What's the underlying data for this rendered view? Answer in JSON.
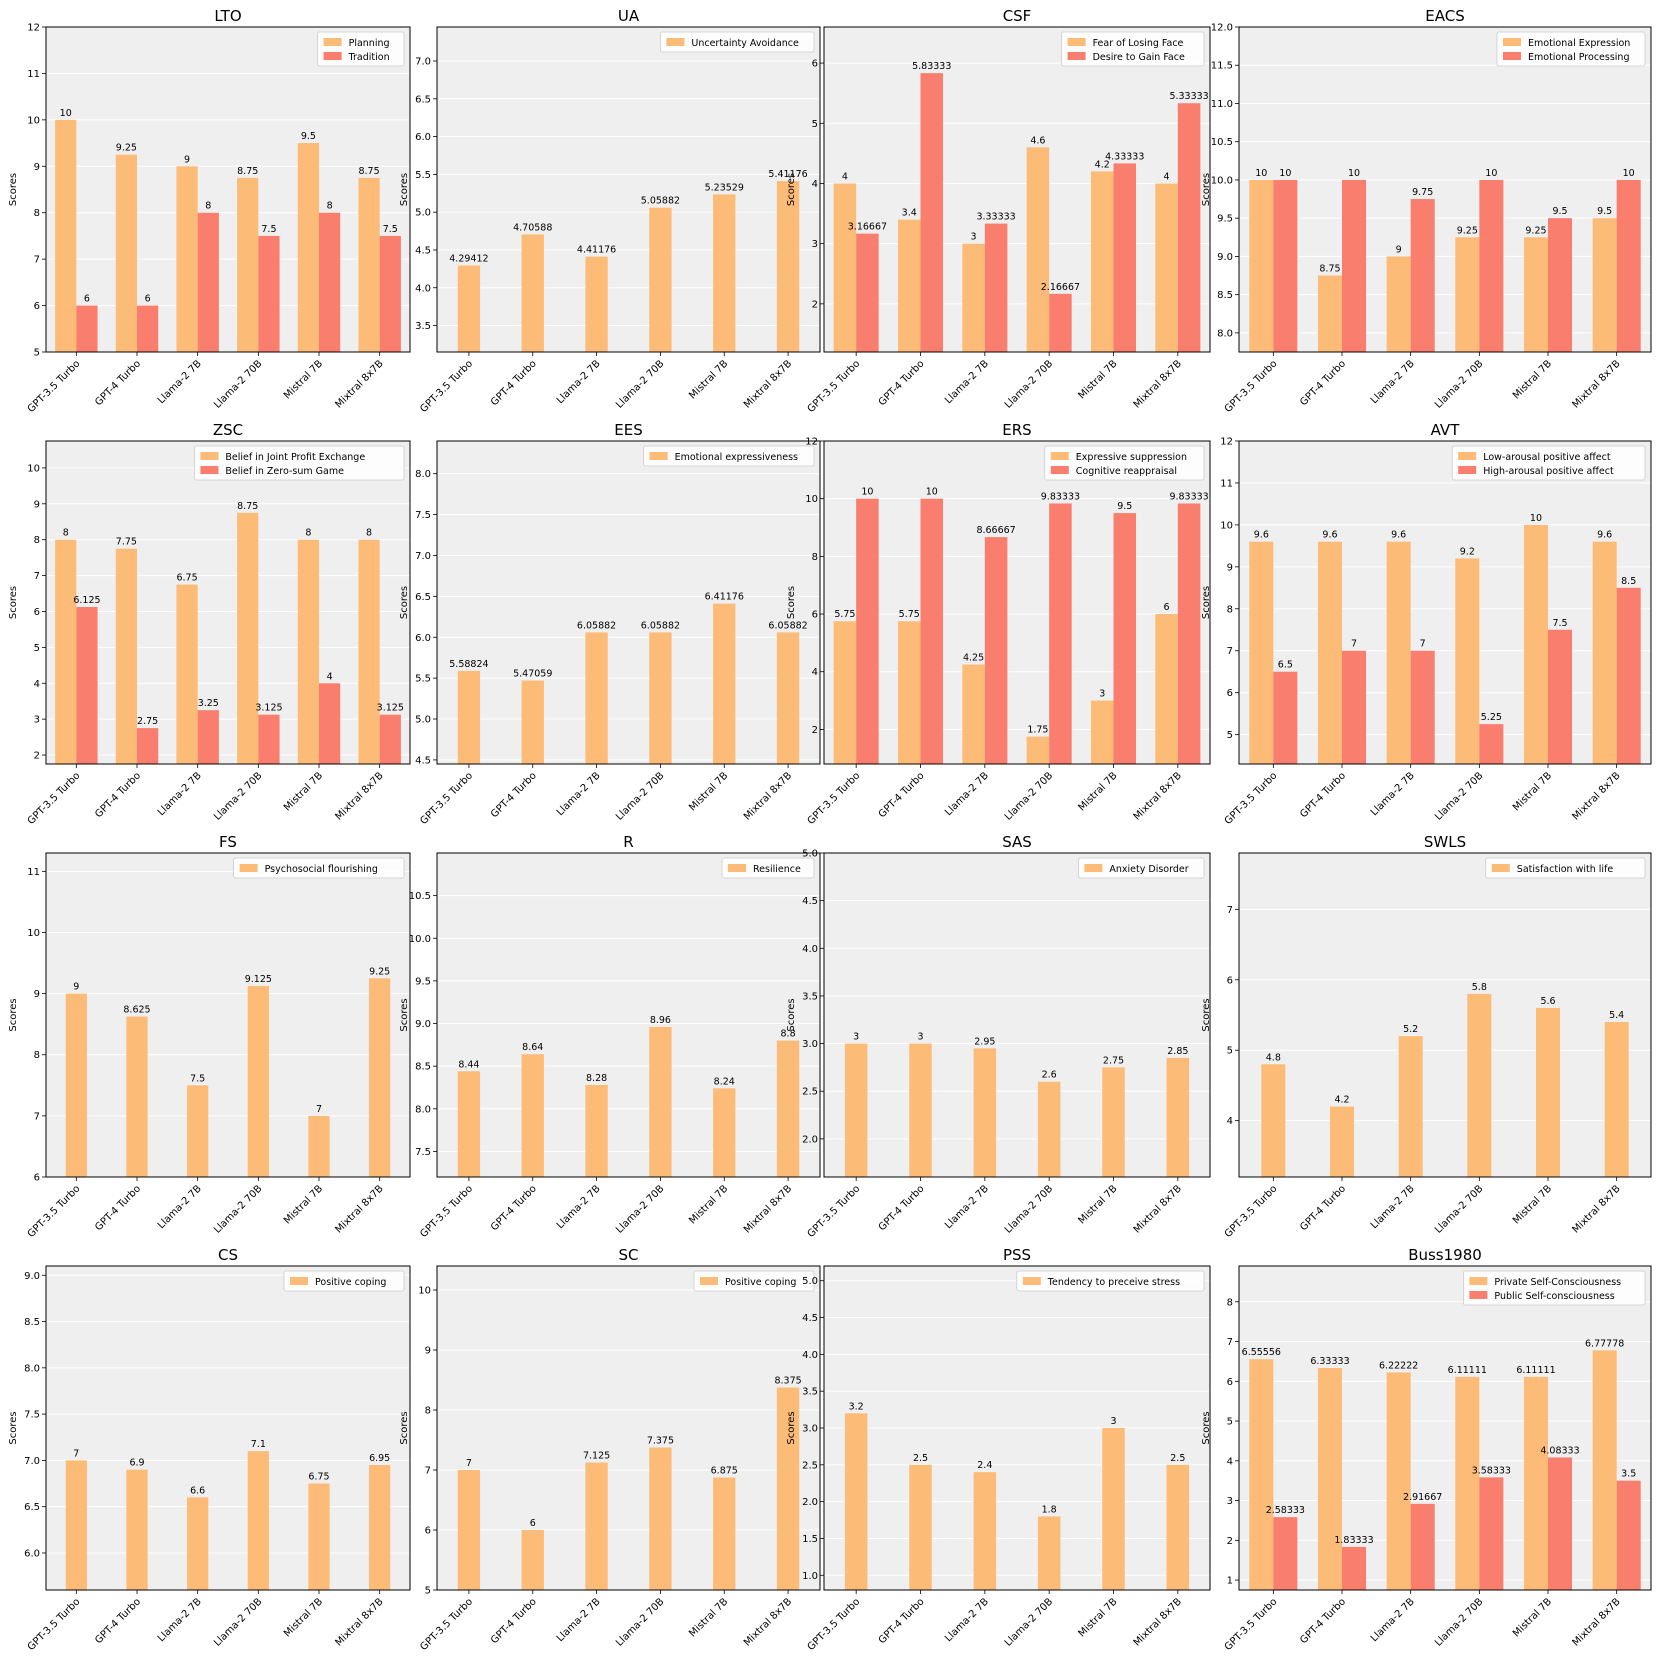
{
  "chart_data": [
    {
      "type": "bar",
      "title": "LTO",
      "ylabel": "Scores",
      "ylim": [
        5,
        12
      ],
      "yticks": [
        5,
        6,
        7,
        8,
        9,
        10,
        11,
        12
      ],
      "tick_decimals": 0,
      "legend": "top-right",
      "categories": [
        "GPT-3.5 Turbo",
        "GPT-4 Turbo",
        "Llama-2 7B",
        "Llama-2 70B",
        "Mistral 7B",
        "Mixtral 8x7B"
      ],
      "series": [
        {
          "name": "Planning",
          "values": [
            10,
            9.25,
            9,
            8.75,
            9.5,
            8.75
          ],
          "labels": [
            "10",
            "9.25",
            "9",
            "8.75",
            "9.5",
            "8.75"
          ]
        },
        {
          "name": "Tradition",
          "values": [
            6,
            6,
            8,
            7.5,
            8,
            7.5
          ],
          "labels": [
            "6",
            "6",
            "8",
            "7.5",
            "8",
            "7.5"
          ]
        }
      ]
    },
    {
      "type": "bar",
      "title": "UA",
      "ylabel": "Scores",
      "ylim": [
        3.15,
        7.45
      ],
      "yticks": [
        3.5,
        4.0,
        4.5,
        5.0,
        5.5,
        6.0,
        6.5,
        7.0
      ],
      "tick_decimals": 1,
      "legend": "top-right",
      "categories": [
        "GPT-3.5 Turbo",
        "GPT-4 Turbo",
        "Llama-2 7B",
        "Llama-2 70B",
        "Mistral 7B",
        "Mixtral 8x7B"
      ],
      "series": [
        {
          "name": "Uncertainty Avoidance",
          "values": [
            4.29412,
            4.70588,
            4.41176,
            5.05882,
            5.23529,
            5.41176
          ],
          "labels": [
            "4.29412",
            "4.70588",
            "4.41176",
            "5.05882",
            "5.23529",
            "5.41176"
          ]
        }
      ]
    },
    {
      "type": "bar",
      "title": "CSF",
      "ylabel": "Scores",
      "ylim": [
        1.2,
        6.6
      ],
      "yticks": [
        2,
        3,
        4,
        5,
        6
      ],
      "tick_decimals": 0,
      "legend": "top-right",
      "categories": [
        "GPT-3.5 Turbo",
        "GPT-4 Turbo",
        "Llama-2 7B",
        "Llama-2 70B",
        "Mistral 7B",
        "Mixtral 8x7B"
      ],
      "series": [
        {
          "name": "Fear of Losing Face",
          "values": [
            4,
            3.4,
            3,
            4.6,
            4.2,
            4
          ],
          "labels": [
            "4",
            "3.4",
            "3",
            "4.6",
            "4.2",
            "4"
          ]
        },
        {
          "name": "Desire to Gain Face",
          "values": [
            3.16667,
            5.83333,
            3.33333,
            2.16667,
            4.33333,
            5.33333
          ],
          "labels": [
            "3.16667",
            "5.83333",
            "3.33333",
            "2.16667",
            "4.33333",
            "5.33333"
          ]
        }
      ]
    },
    {
      "type": "bar",
      "title": "EACS",
      "ylabel": "Scores",
      "ylim": [
        7.75,
        12
      ],
      "yticks": [
        8.0,
        8.5,
        9.0,
        9.5,
        10.0,
        10.5,
        11.0,
        11.5,
        12.0
      ],
      "tick_decimals": 1,
      "legend": "top-right",
      "categories": [
        "GPT-3.5 Turbo",
        "GPT-4 Turbo",
        "Llama-2 7B",
        "Llama-2 70B",
        "Mistral 7B",
        "Mixtral 8x7B"
      ],
      "series": [
        {
          "name": "Emotional Expression",
          "values": [
            10,
            8.75,
            9,
            9.25,
            9.25,
            9.5
          ],
          "labels": [
            "10",
            "8.75",
            "9",
            "9.25",
            "9.25",
            "9.5"
          ]
        },
        {
          "name": "Emotional Processing",
          "values": [
            10,
            10,
            9.75,
            10,
            9.5,
            10
          ],
          "labels": [
            "10",
            "10",
            "9.75",
            "10",
            "9.5",
            "10"
          ]
        }
      ]
    },
    {
      "type": "bar",
      "title": "ZSC",
      "ylabel": "Scores",
      "ylim": [
        1.75,
        10.75
      ],
      "yticks": [
        2,
        3,
        4,
        5,
        6,
        7,
        8,
        9,
        10
      ],
      "tick_decimals": 0,
      "legend": "top-right",
      "categories": [
        "GPT-3.5 Turbo",
        "GPT-4 Turbo",
        "Llama-2 7B",
        "Llama-2 70B",
        "Mistral 7B",
        "Mixtral 8x7B"
      ],
      "series": [
        {
          "name": "Belief in Joint Profit Exchange",
          "values": [
            8,
            7.75,
            6.75,
            8.75,
            8,
            8
          ],
          "labels": [
            "8",
            "7.75",
            "6.75",
            "8.75",
            "8",
            "8"
          ]
        },
        {
          "name": "Belief in Zero-sum Game",
          "values": [
            6.125,
            2.75,
            3.25,
            3.125,
            4,
            3.125
          ],
          "labels": [
            "6.125",
            "2.75",
            "3.25",
            "3.125",
            "4",
            "3.125"
          ]
        }
      ]
    },
    {
      "type": "bar",
      "title": "EES",
      "ylabel": "Scores",
      "ylim": [
        4.45,
        8.4
      ],
      "yticks": [
        4.5,
        5.0,
        5.5,
        6.0,
        6.5,
        7.0,
        7.5,
        8.0
      ],
      "tick_decimals": 1,
      "legend": "top-right",
      "categories": [
        "GPT-3.5 Turbo",
        "GPT-4 Turbo",
        "Llama-2 7B",
        "Llama-2 70B",
        "Mistral 7B",
        "Mixtral 8x7B"
      ],
      "series": [
        {
          "name": "Emotional expressiveness",
          "values": [
            5.58824,
            5.47059,
            6.05882,
            6.05882,
            6.41176,
            6.05882
          ],
          "labels": [
            "5.58824",
            "5.47059",
            "6.05882",
            "6.05882",
            "6.41176",
            "6.05882"
          ]
        }
      ]
    },
    {
      "type": "bar",
      "title": "ERS",
      "ylabel": "Scores",
      "ylim": [
        0.8,
        12
      ],
      "yticks": [
        2,
        4,
        6,
        8,
        10,
        12
      ],
      "tick_decimals": 0,
      "legend": "top-right",
      "categories": [
        "GPT-3.5 Turbo",
        "GPT-4 Turbo",
        "Llama-2 7B",
        "Llama-2 70B",
        "Mistral 7B",
        "Mixtral 8x7B"
      ],
      "series": [
        {
          "name": "Expressive suppression",
          "values": [
            5.75,
            5.75,
            4.25,
            1.75,
            3,
            6
          ],
          "labels": [
            "5.75",
            "5.75",
            "4.25",
            "1.75",
            "3",
            "6"
          ]
        },
        {
          "name": "Cognitive reappraisal",
          "values": [
            10,
            10,
            8.66667,
            9.83333,
            9.5,
            9.83333
          ],
          "labels": [
            "10",
            "10",
            "8.66667",
            "9.83333",
            "9.5",
            "9.83333"
          ]
        }
      ]
    },
    {
      "type": "bar",
      "title": "AVT",
      "ylabel": "Scores",
      "ylim": [
        4.3,
        12
      ],
      "yticks": [
        5,
        6,
        7,
        8,
        9,
        10,
        11,
        12
      ],
      "tick_decimals": 0,
      "legend": "top-right",
      "categories": [
        "GPT-3.5 Turbo",
        "GPT-4 Turbo",
        "Llama-2 7B",
        "Llama-2 70B",
        "Mistral 7B",
        "Mixtral 8x7B"
      ],
      "series": [
        {
          "name": "Low-arousal positive affect",
          "values": [
            9.6,
            9.6,
            9.6,
            9.2,
            10,
            9.6
          ],
          "labels": [
            "9.6",
            "9.6",
            "9.6",
            "9.2",
            "10",
            "9.6"
          ]
        },
        {
          "name": "High-arousal positive affect",
          "values": [
            6.5,
            7,
            7,
            5.25,
            7.5,
            8.5
          ],
          "labels": [
            "6.5",
            "7",
            "7",
            "5.25",
            "7.5",
            "8.5"
          ]
        }
      ]
    },
    {
      "type": "bar",
      "title": "FS",
      "ylabel": "Scores",
      "ylim": [
        6,
        11.3
      ],
      "yticks": [
        6,
        7,
        8,
        9,
        10,
        11
      ],
      "tick_decimals": 0,
      "legend": "top-right",
      "categories": [
        "GPT-3.5 Turbo",
        "GPT-4 Turbo",
        "Llama-2 7B",
        "Llama-2 70B",
        "Mistral 7B",
        "Mixtral 8x7B"
      ],
      "series": [
        {
          "name": "Psychosocial flourishing",
          "values": [
            9,
            8.625,
            7.5,
            9.125,
            7,
            9.25
          ],
          "labels": [
            "9",
            "8.625",
            "7.5",
            "9.125",
            "7",
            "9.25"
          ]
        }
      ]
    },
    {
      "type": "bar",
      "title": "R",
      "ylabel": "Scores",
      "ylim": [
        7.2,
        11
      ],
      "yticks": [
        7.5,
        8.0,
        8.5,
        9.0,
        9.5,
        10.0,
        10.5
      ],
      "tick_decimals": 1,
      "legend": "top-right",
      "categories": [
        "GPT-3.5 Turbo",
        "GPT-4 Turbo",
        "Llama-2 7B",
        "Llama-2 70B",
        "Mistral 7B",
        "Mixtral 8x7B"
      ],
      "series": [
        {
          "name": "Resilience",
          "values": [
            8.44,
            8.64,
            8.28,
            8.96,
            8.24,
            8.8
          ],
          "labels": [
            "8.44",
            "8.64",
            "8.28",
            "8.96",
            "8.24",
            "8.8"
          ]
        }
      ]
    },
    {
      "type": "bar",
      "title": "SAS",
      "ylabel": "Scores",
      "ylim": [
        1.6,
        5
      ],
      "yticks": [
        2.0,
        2.5,
        3.0,
        3.5,
        4.0,
        4.5,
        5.0
      ],
      "tick_decimals": 1,
      "legend": "top-right",
      "categories": [
        "GPT-3.5 Turbo",
        "GPT-4 Turbo",
        "Llama-2 7B",
        "Llama-2 70B",
        "Mistral 7B",
        "Mixtral 8x7B"
      ],
      "series": [
        {
          "name": "Anxiety Disorder",
          "values": [
            3,
            3,
            2.95,
            2.6,
            2.75,
            2.85
          ],
          "labels": [
            "3",
            "3",
            "2.95",
            "2.6",
            "2.75",
            "2.85"
          ]
        }
      ]
    },
    {
      "type": "bar",
      "title": "SWLS",
      "ylabel": "Scores",
      "ylim": [
        3.2,
        7.8
      ],
      "yticks": [
        4,
        5,
        6,
        7
      ],
      "tick_decimals": 0,
      "legend": "top-right",
      "categories": [
        "GPT-3.5 Turbo",
        "GPT-4 Turbo",
        "Llama-2 7B",
        "Llama-2 70B",
        "Mistral 7B",
        "Mixtral 8x7B"
      ],
      "series": [
        {
          "name": "Satisfaction with life",
          "values": [
            4.8,
            4.2,
            5.2,
            5.8,
            5.6,
            5.4
          ],
          "labels": [
            "4.8",
            "4.2",
            "5.2",
            "5.8",
            "5.6",
            "5.4"
          ]
        }
      ]
    },
    {
      "type": "bar",
      "title": "CS",
      "ylabel": "Scores",
      "ylim": [
        5.6,
        9.1
      ],
      "yticks": [
        6.0,
        6.5,
        7.0,
        7.5,
        8.0,
        8.5,
        9.0
      ],
      "tick_decimals": 1,
      "legend": "top-right",
      "categories": [
        "GPT-3.5 Turbo",
        "GPT-4 Turbo",
        "Llama-2 7B",
        "Llama-2 70B",
        "Mistral 7B",
        "Mixtral 8x7B"
      ],
      "series": [
        {
          "name": "Positive coping",
          "values": [
            7,
            6.9,
            6.6,
            7.1,
            6.75,
            6.95
          ],
          "labels": [
            "7",
            "6.9",
            "6.6",
            "7.1",
            "6.75",
            "6.95"
          ]
        }
      ]
    },
    {
      "type": "bar",
      "title": "SC",
      "ylabel": "Scores",
      "ylim": [
        5,
        10.4
      ],
      "yticks": [
        5,
        6,
        7,
        8,
        9,
        10
      ],
      "tick_decimals": 0,
      "legend": "top-right",
      "categories": [
        "GPT-3.5 Turbo",
        "GPT-4 Turbo",
        "Llama-2 7B",
        "Llama-2 70B",
        "Mistral 7B",
        "Mixtral 8x7B"
      ],
      "series": [
        {
          "name": "Positive coping",
          "values": [
            7,
            6,
            7.125,
            7.375,
            6.875,
            8.375
          ],
          "labels": [
            "7",
            "6",
            "7.125",
            "7.375",
            "6.875",
            "8.375"
          ]
        }
      ]
    },
    {
      "type": "bar",
      "title": "PSS",
      "ylabel": "Scores",
      "ylim": [
        0.8,
        5.2
      ],
      "yticks": [
        1.0,
        1.5,
        2.0,
        2.5,
        3.0,
        3.5,
        4.0,
        4.5,
        5.0
      ],
      "tick_decimals": 1,
      "legend": "top-right",
      "categories": [
        "GPT-3.5 Turbo",
        "GPT-4 Turbo",
        "Llama-2 7B",
        "Llama-2 70B",
        "Mistral 7B",
        "Mixtral 8x7B"
      ],
      "series": [
        {
          "name": "Tendency to preceive stress",
          "values": [
            3.2,
            2.5,
            2.4,
            1.8,
            3,
            2.5
          ],
          "labels": [
            "3.2",
            "2.5",
            "2.4",
            "1.8",
            "3",
            "2.5"
          ]
        }
      ]
    },
    {
      "type": "bar",
      "title": "Buss1980",
      "ylabel": "Scores",
      "ylim": [
        0.75,
        8.9
      ],
      "yticks": [
        1,
        2,
        3,
        4,
        5,
        6,
        7,
        8
      ],
      "tick_decimals": 0,
      "legend": "top-right",
      "categories": [
        "GPT-3.5 Turbo",
        "GPT-4 Turbo",
        "Llama-2 7B",
        "Llama-2 70B",
        "Mistral 7B",
        "Mixtral 8x7B"
      ],
      "series": [
        {
          "name": "Private Self-Consciousness",
          "values": [
            6.55556,
            6.33333,
            6.22222,
            6.11111,
            6.11111,
            6.77778
          ],
          "labels": [
            "6.55556",
            "6.33333",
            "6.22222",
            "6.11111",
            "6.11111",
            "6.77778"
          ]
        },
        {
          "name": "Public Self-consciousness",
          "values": [
            2.58333,
            1.83333,
            2.91667,
            3.58333,
            4.08333,
            3.5
          ],
          "labels": [
            "2.58333",
            "1.83333",
            "2.91667",
            "3.58333",
            "4.08333",
            "3.5"
          ]
        }
      ]
    }
  ],
  "colors": {
    "series": [
      "#FDBB78",
      "#FA7E6D"
    ],
    "plot_background": "#EFEFEF",
    "grid": "#FFFFFF"
  }
}
